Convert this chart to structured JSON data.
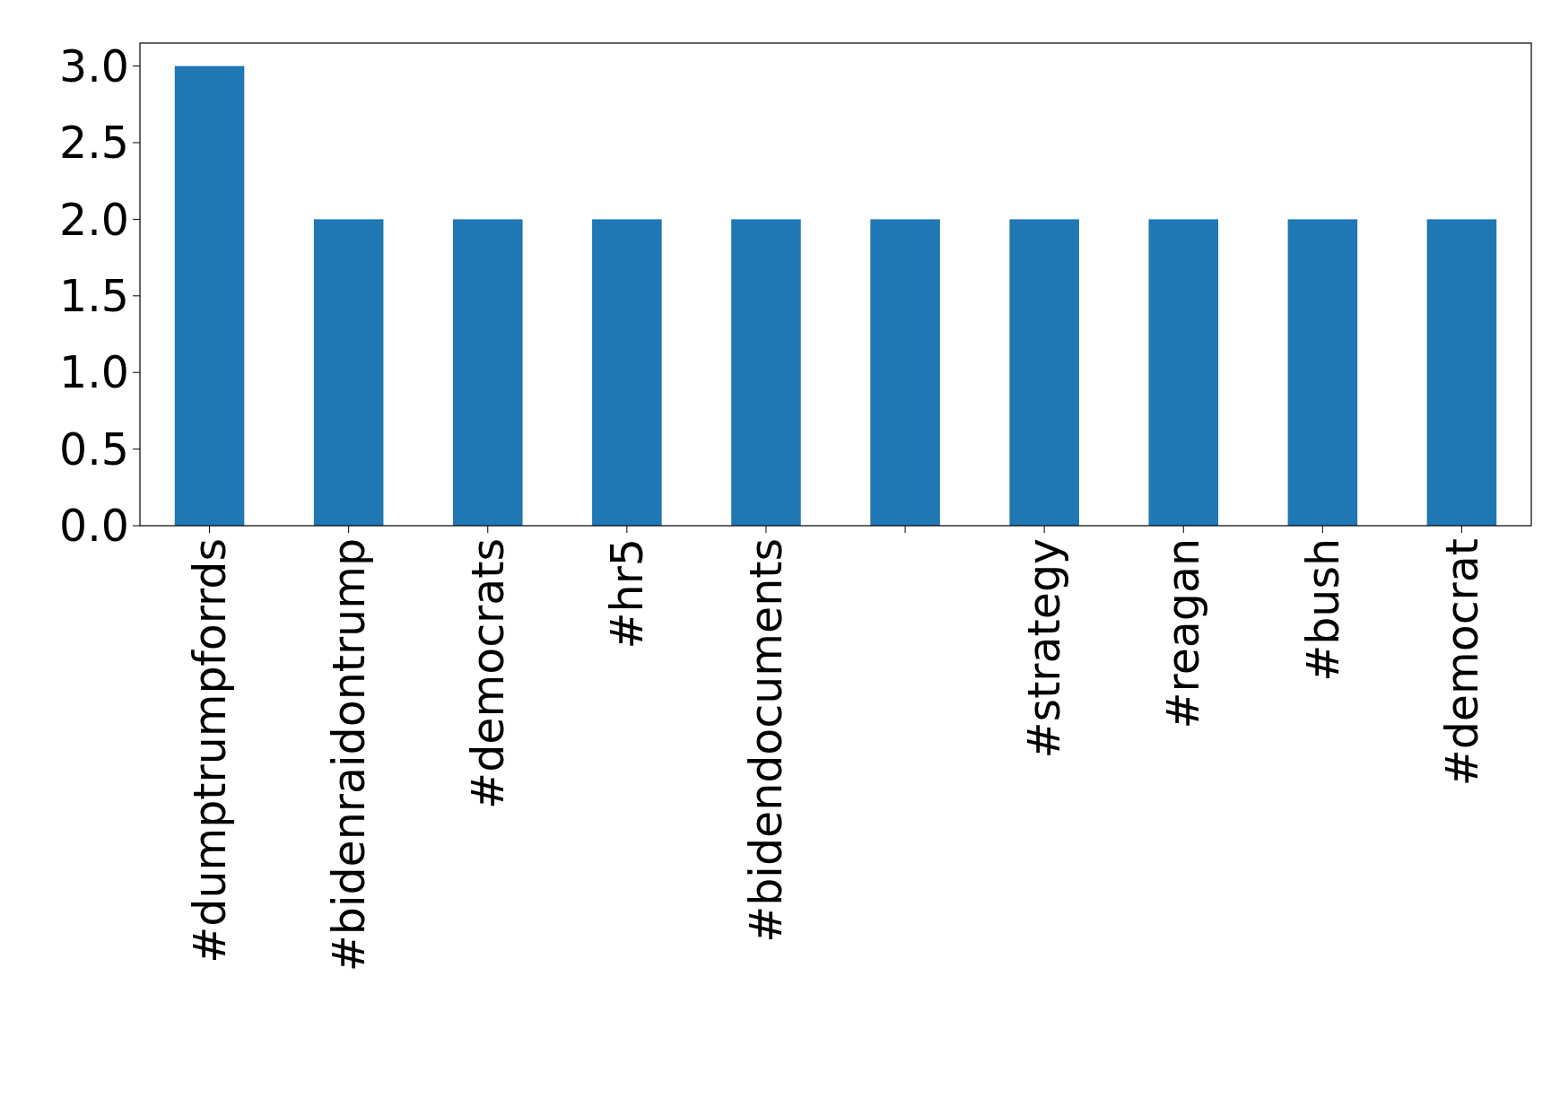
{
  "chart_data": {
    "type": "bar",
    "categories": [
      "#dumptrumpforrds",
      "#bidenraidontrump",
      "#democrats",
      "#hr5",
      "#bidendocuments",
      null,
      "#strategy",
      "#reagan",
      "#bush",
      "#democrat"
    ],
    "values": [
      3,
      2,
      2,
      2,
      2,
      2,
      2,
      2,
      2,
      2
    ],
    "color": "#1f77b4",
    "ylim": [
      0,
      3.15
    ],
    "yticks": [
      {
        "value": 0,
        "label": "0.0"
      },
      {
        "value": 0.5,
        "label": "0.5"
      },
      {
        "value": 1,
        "label": "1.0"
      },
      {
        "value": 1.5,
        "label": "1.5"
      },
      {
        "value": 2,
        "label": "2.0"
      },
      {
        "value": 2.5,
        "label": "2.5"
      },
      {
        "value": 3,
        "label": "3.0"
      }
    ],
    "grid": false
  }
}
